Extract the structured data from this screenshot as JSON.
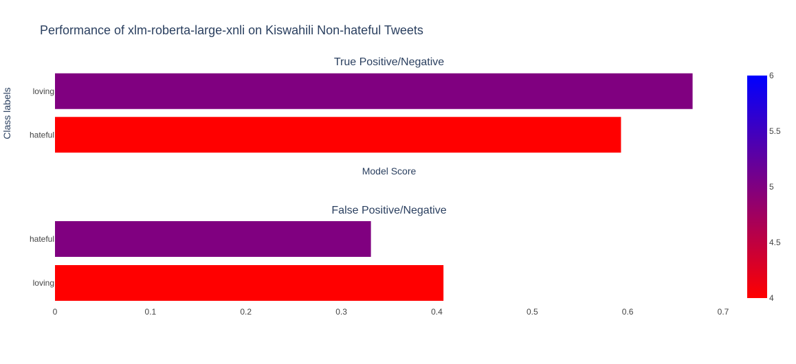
{
  "chart_data": {
    "type": "bar",
    "orientation": "horizontal",
    "title": "Performance of xlm-roberta-large-xnli on Kiswahili Non-hateful Tweets",
    "ylabel": "Class labels",
    "xlim": [
      0,
      0.7
    ],
    "x_ticks": [
      0,
      0.1,
      0.2,
      0.3,
      0.4,
      0.5,
      0.6,
      0.7
    ],
    "x_tick_labels": [
      "0",
      "0.1",
      "0.2",
      "0.3",
      "0.4",
      "0.5",
      "0.6",
      "0.7"
    ],
    "panels": [
      {
        "title": "True Positive/Negative",
        "xlabel": "Model Score",
        "categories": [
          "loving",
          "hateful"
        ],
        "values": [
          0.668,
          0.593
        ],
        "colors": [
          "#800080",
          "#ff0000"
        ]
      },
      {
        "title": "False Positive/Negative",
        "xlabel": "",
        "categories": [
          "hateful",
          "loving"
        ],
        "values": [
          0.331,
          0.407
        ],
        "colors": [
          "#800080",
          "#ff0000"
        ]
      }
    ],
    "colorbar": {
      "range": [
        4,
        6
      ],
      "ticks": [
        4,
        4.5,
        5,
        5.5,
        6
      ],
      "tick_labels": [
        "4",
        "4.5",
        "5",
        "5.5",
        "6"
      ],
      "color_low": "#ff0000",
      "color_high": "#0000ff"
    },
    "grid": false,
    "legend": "none"
  },
  "colors": {
    "text": "#2a3f5f",
    "axis_text": "#444444"
  }
}
